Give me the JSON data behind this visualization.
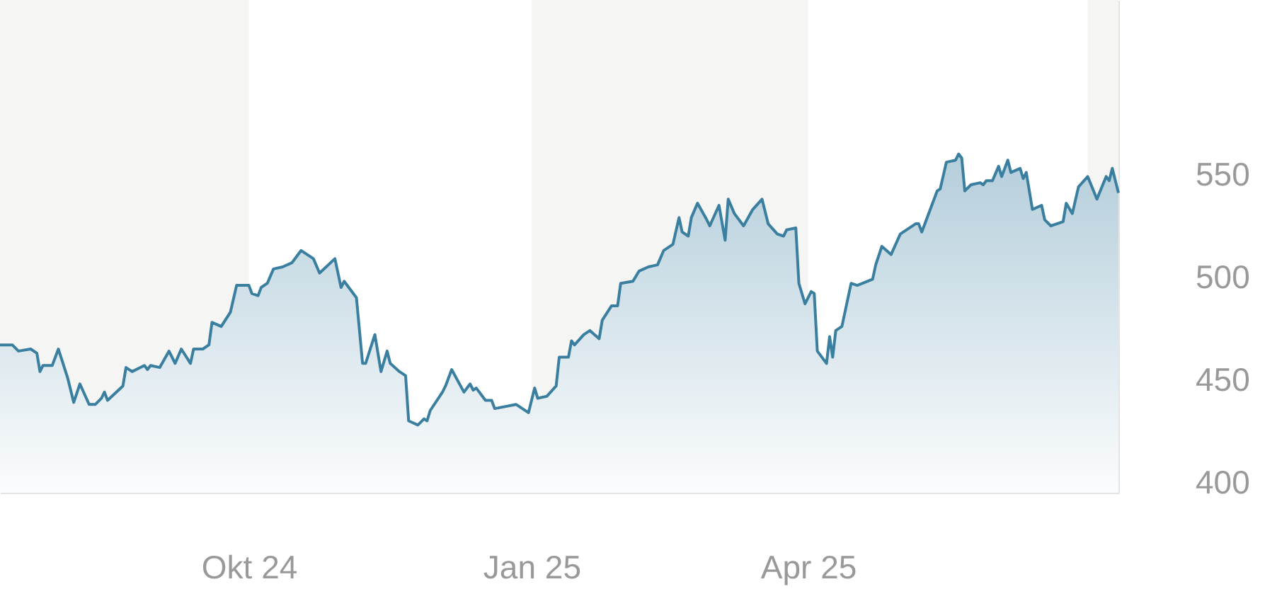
{
  "chart_data": {
    "type": "area",
    "x": [
      "2024-07-12",
      "2024-07-16",
      "2024-07-18",
      "2024-07-22",
      "2024-07-24",
      "2024-07-25",
      "2024-07-26",
      "2024-07-29",
      "2024-07-31",
      "2024-08-03",
      "2024-08-05",
      "2024-08-07",
      "2024-08-10",
      "2024-08-12",
      "2024-08-14",
      "2024-08-15",
      "2024-08-16",
      "2024-08-21",
      "2024-08-22",
      "2024-08-24",
      "2024-08-28",
      "2024-08-29",
      "2024-08-30",
      "2024-09-02",
      "2024-09-05",
      "2024-09-07",
      "2024-09-09",
      "2024-09-12",
      "2024-09-13",
      "2024-09-16",
      "2024-09-18",
      "2024-09-19",
      "2024-09-22",
      "2024-09-25",
      "2024-09-27",
      "2024-10-01",
      "2024-10-02",
      "2024-10-04",
      "2024-10-05",
      "2024-10-07",
      "2024-10-09",
      "2024-10-12",
      "2024-10-15",
      "2024-10-18",
      "2024-10-22",
      "2024-10-24",
      "2024-10-29",
      "2024-10-31",
      "2024-11-01",
      "2024-11-05",
      "2024-11-07",
      "2024-11-08",
      "2024-11-11",
      "2024-11-13",
      "2024-11-15",
      "2024-11-16",
      "2024-11-19",
      "2024-11-21",
      "2024-11-22",
      "2024-11-25",
      "2024-11-27",
      "2024-11-28",
      "2024-11-29",
      "2024-12-03",
      "2024-12-04",
      "2024-12-06",
      "2024-12-10",
      "2024-12-12",
      "2024-12-13",
      "2024-12-14",
      "2024-12-17",
      "2024-12-19",
      "2024-12-20",
      "2024-12-27",
      "2024-12-31",
      "2025-01-02",
      "2025-01-03",
      "2025-01-06",
      "2025-01-09",
      "2025-01-10",
      "2025-01-13",
      "2025-01-14",
      "2025-01-15",
      "2025-01-18",
      "2025-01-20",
      "2025-01-23",
      "2025-01-24",
      "2025-01-27",
      "2025-01-29",
      "2025-01-30",
      "2025-02-03",
      "2025-02-05",
      "2025-02-08",
      "2025-02-11",
      "2025-02-13",
      "2025-02-16",
      "2025-02-18",
      "2025-02-19",
      "2025-02-21",
      "2025-02-22",
      "2025-02-24",
      "2025-02-27",
      "2025-02-28",
      "2025-03-03",
      "2025-03-05",
      "2025-03-06",
      "2025-03-08",
      "2025-03-11",
      "2025-03-14",
      "2025-03-17",
      "2025-03-19",
      "2025-03-22",
      "2025-03-24",
      "2025-03-25",
      "2025-03-28",
      "2025-03-29",
      "2025-03-31",
      "2025-04-02",
      "2025-04-03",
      "2025-04-04",
      "2025-04-07",
      "2025-04-08",
      "2025-04-09",
      "2025-04-10",
      "2025-04-12",
      "2025-04-15",
      "2025-04-17",
      "2025-04-22",
      "2025-04-23",
      "2025-04-25",
      "2025-04-28",
      "2025-05-01",
      "2025-05-02",
      "2025-05-06",
      "2025-05-07",
      "2025-05-08",
      "2025-05-13",
      "2025-05-14",
      "2025-05-16",
      "2025-05-19",
      "2025-05-20",
      "2025-05-21",
      "2025-05-22",
      "2025-05-24",
      "2025-05-27",
      "2025-05-28",
      "2025-05-29",
      "2025-05-31",
      "2025-06-02",
      "2025-06-03",
      "2025-06-05",
      "2025-06-06",
      "2025-06-09",
      "2025-06-10",
      "2025-06-11",
      "2025-06-13",
      "2025-06-16",
      "2025-06-17",
      "2025-06-19",
      "2025-06-23",
      "2025-06-24",
      "2025-06-26",
      "2025-06-28",
      "2025-07-01",
      "2025-07-04",
      "2025-07-07",
      "2025-07-08",
      "2025-07-09",
      "2025-07-11"
    ],
    "series": [
      {
        "color": "#3a7fa0",
        "values": [
          467,
          467,
          464,
          465,
          463,
          454,
          457,
          457,
          465,
          451,
          439,
          448,
          438,
          438,
          441,
          444,
          440,
          447,
          456,
          454,
          457,
          455,
          457,
          456,
          464,
          458,
          465,
          458,
          465,
          465,
          467,
          478,
          476,
          483,
          496,
          496,
          492,
          491,
          495,
          497,
          504,
          505,
          507,
          513,
          509,
          502,
          509,
          495,
          498,
          490,
          458,
          458,
          472,
          454,
          464,
          458,
          454,
          452,
          430,
          428,
          431,
          430,
          435,
          444,
          447,
          455,
          444,
          448,
          445,
          446,
          440,
          440,
          436,
          438,
          434,
          446,
          441,
          442,
          447,
          461,
          461,
          469,
          467,
          472,
          474,
          470,
          479,
          486,
          486,
          497,
          498,
          503,
          505,
          506,
          513,
          516,
          529,
          522,
          520,
          529,
          536,
          528,
          525,
          535,
          518,
          538,
          531,
          525,
          533,
          538,
          526,
          521,
          520,
          523,
          524,
          497,
          487,
          493,
          492,
          464,
          458,
          471,
          461,
          474,
          476,
          497,
          496,
          499,
          506,
          515,
          511,
          521,
          522,
          526,
          526,
          522,
          542,
          543,
          556,
          557,
          560,
          558,
          542,
          545,
          546,
          545,
          547,
          547,
          554,
          549,
          557,
          551,
          553,
          548,
          551,
          533,
          535,
          528,
          525,
          527,
          536,
          531,
          544,
          549,
          538,
          549,
          547,
          553,
          541
        ]
      }
    ],
    "xlim": [
      "2024-07-12",
      "2025-07-11"
    ],
    "xticks": [
      {
        "value": "2024-10-01",
        "label": "Okt 24"
      },
      {
        "value": "2025-01-01",
        "label": "Jan 25"
      },
      {
        "value": "2025-04-01",
        "label": "Apr 25"
      }
    ],
    "ylim": [
      395,
      635
    ],
    "yticks": [
      400,
      450,
      500,
      550
    ],
    "bands": [
      {
        "axis": "x",
        "from": "2024-07-12",
        "to": "2024-10-01",
        "color": "#f5f5f3"
      },
      {
        "axis": "x",
        "from": "2025-01-01",
        "to": "2025-04-01",
        "color": "#f5f5f3"
      },
      {
        "axis": "x",
        "from": "2025-07-01",
        "to": "2025-07-11",
        "color": "#f5f5f3"
      }
    ]
  }
}
